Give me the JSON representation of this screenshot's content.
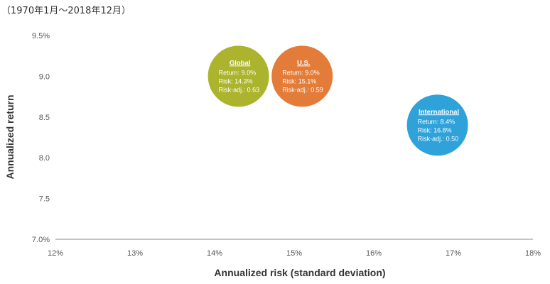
{
  "caption": "（1970年1月～2018年12月）",
  "chart_data": {
    "type": "scatter",
    "title": "",
    "xlabel": "Annualized risk (standard deviation)",
    "ylabel": "Annualized return",
    "xlim": [
      12,
      18
    ],
    "ylim": [
      7.0,
      9.5
    ],
    "x_ticks": [
      "12%",
      "13%",
      "14%",
      "15%",
      "16%",
      "17%",
      "18%"
    ],
    "y_ticks": [
      "7.0%",
      "7.5",
      "8.0",
      "8.5",
      "9.0",
      "9.5%"
    ],
    "grid": false,
    "series": [
      {
        "name": "Global",
        "x": 14.3,
        "y": 9.0,
        "color": "#a5ae1c",
        "lines": [
          "Return: 9.0%",
          "Risk: 14.3%",
          "Risk-adj.: 0.63"
        ]
      },
      {
        "name": "U.S.",
        "x": 15.1,
        "y": 9.0,
        "color": "#e2722a",
        "lines": [
          "Return: 9.0%",
          "Risk: 15.1%",
          "Risk-adj.: 0.59"
        ]
      },
      {
        "name": "International",
        "x": 16.8,
        "y": 8.4,
        "color": "#1f9bd7",
        "lines": [
          "Return: 8.4%",
          "Risk: 16.8%",
          "Risk-adj.: 0.50"
        ]
      }
    ]
  }
}
